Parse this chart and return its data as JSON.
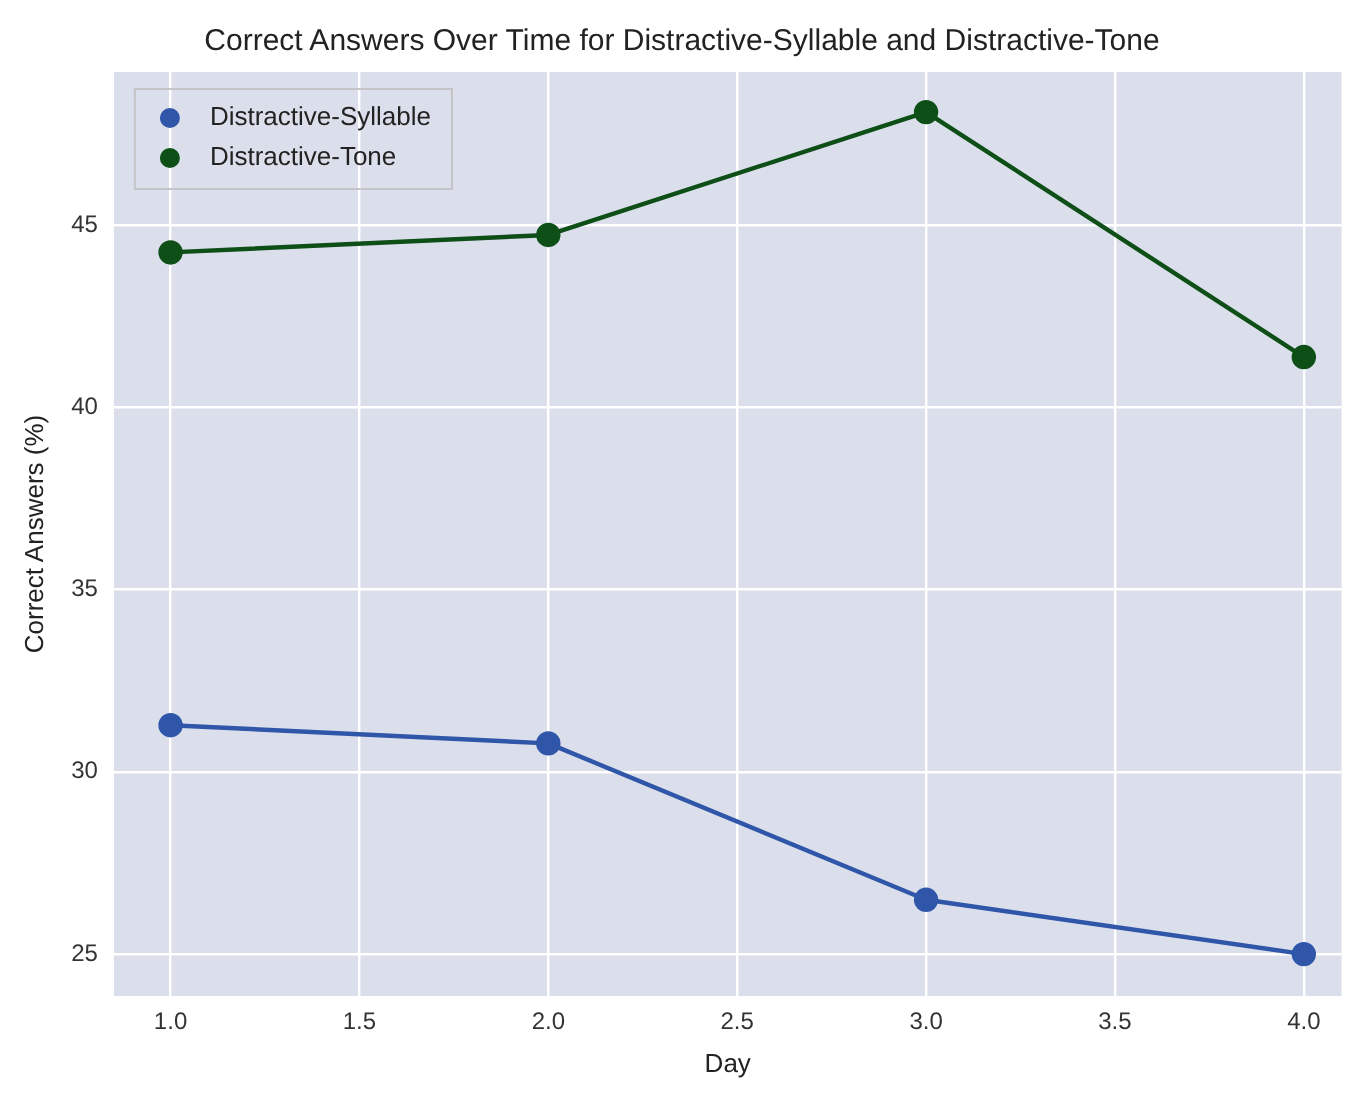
{
  "chart_data": {
    "type": "line",
    "title": "Correct Answers Over Time for Distractive-Syllable and Distractive-Tone",
    "xlabel": "Day",
    "ylabel": "Correct Answers (%)",
    "x": [
      1,
      2,
      3,
      4
    ],
    "series": [
      {
        "name": "Distractive-Syllable",
        "color": "#2f56a8",
        "values": [
          31.28,
          30.78,
          26.49,
          25.0
        ]
      },
      {
        "name": "Distractive-Tone",
        "color": "#0d4f17",
        "values": [
          44.25,
          44.73,
          48.1,
          41.38
        ]
      }
    ],
    "xlim": [
      0.85,
      4.1
    ],
    "xticks": [
      {
        "value": 1,
        "label": "1.0"
      },
      {
        "value": 1.5,
        "label": "1.5"
      },
      {
        "value": 2,
        "label": "2.0"
      },
      {
        "value": 2.5,
        "label": "2.5"
      },
      {
        "value": 3,
        "label": "3.0"
      },
      {
        "value": 3.5,
        "label": "3.5"
      },
      {
        "value": 4,
        "label": "4.0"
      }
    ],
    "ylim": [
      23.85,
      49.2
    ],
    "yticks": [
      25,
      30,
      35,
      40,
      45
    ],
    "grid": true,
    "legend": "top left",
    "marker": "circle",
    "line_style": "solid"
  }
}
